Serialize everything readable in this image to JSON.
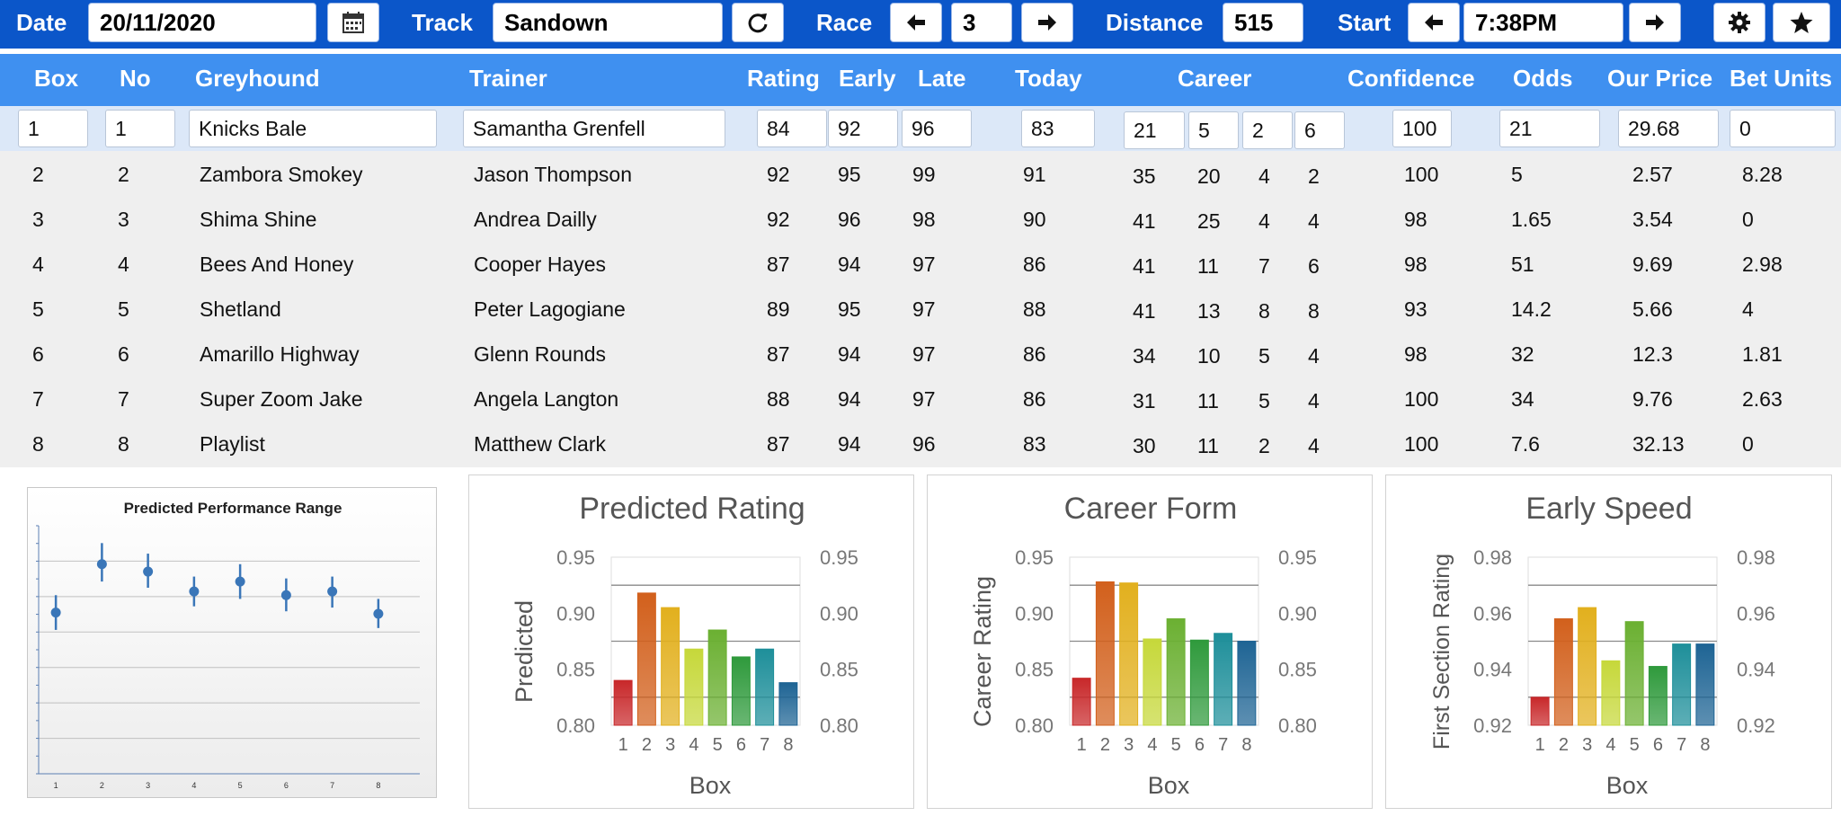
{
  "toolbar": {
    "date_label": "Date",
    "date_value": "20/11/2020",
    "track_label": "Track",
    "track_value": "Sandown",
    "race_label": "Race",
    "race_value": "3",
    "distance_label": "Distance",
    "distance_value": "515",
    "start_label": "Start",
    "start_value": "7:38PM",
    "icons": [
      "calendar-icon",
      "refresh-icon",
      "arrow-left-icon",
      "arrow-right-icon",
      "gear-icon",
      "star-icon"
    ]
  },
  "columns": [
    "Box",
    "No",
    "Greyhound",
    "Trainer",
    "Rating",
    "Early",
    "Late",
    "Today",
    "Career",
    "Confidence",
    "Odds",
    "Our Price",
    "Bet Units"
  ],
  "rows": [
    {
      "box": "1",
      "no": "1",
      "greyhound": "Knicks Bale",
      "trainer": "Samantha Grenfell",
      "rating": "84",
      "early": "92",
      "late": "96",
      "today": "83",
      "career": [
        "21",
        "5",
        "2",
        "6"
      ],
      "confidence": "100",
      "odds": "21",
      "our_price": "29.68",
      "bet_units": "0"
    },
    {
      "box": "2",
      "no": "2",
      "greyhound": "Zambora Smokey",
      "trainer": "Jason Thompson",
      "rating": "92",
      "early": "95",
      "late": "99",
      "today": "91",
      "career": [
        "35",
        "20",
        "4",
        "2"
      ],
      "confidence": "100",
      "odds": "5",
      "our_price": "2.57",
      "bet_units": "8.28"
    },
    {
      "box": "3",
      "no": "3",
      "greyhound": "Shima Shine",
      "trainer": "Andrea Dailly",
      "rating": "92",
      "early": "96",
      "late": "98",
      "today": "90",
      "career": [
        "41",
        "25",
        "4",
        "4"
      ],
      "confidence": "98",
      "odds": "1.65",
      "our_price": "3.54",
      "bet_units": "0"
    },
    {
      "box": "4",
      "no": "4",
      "greyhound": "Bees And Honey",
      "trainer": "Cooper Hayes",
      "rating": "87",
      "early": "94",
      "late": "97",
      "today": "86",
      "career": [
        "41",
        "11",
        "7",
        "6"
      ],
      "confidence": "98",
      "odds": "51",
      "our_price": "9.69",
      "bet_units": "2.98"
    },
    {
      "box": "5",
      "no": "5",
      "greyhound": "Shetland",
      "trainer": "Peter Lagogiane",
      "rating": "89",
      "early": "95",
      "late": "97",
      "today": "88",
      "career": [
        "41",
        "13",
        "8",
        "8"
      ],
      "confidence": "93",
      "odds": "14.2",
      "our_price": "5.66",
      "bet_units": "4"
    },
    {
      "box": "6",
      "no": "6",
      "greyhound": "Amarillo Highway",
      "trainer": "Glenn Rounds",
      "rating": "87",
      "early": "94",
      "late": "97",
      "today": "86",
      "career": [
        "34",
        "10",
        "5",
        "4"
      ],
      "confidence": "98",
      "odds": "32",
      "our_price": "12.3",
      "bet_units": "1.81"
    },
    {
      "box": "7",
      "no": "7",
      "greyhound": "Super Zoom Jake",
      "trainer": "Angela Langton",
      "rating": "88",
      "early": "94",
      "late": "97",
      "today": "86",
      "career": [
        "31",
        "11",
        "5",
        "4"
      ],
      "confidence": "100",
      "odds": "34",
      "our_price": "9.76",
      "bet_units": "2.63"
    },
    {
      "box": "8",
      "no": "8",
      "greyhound": "Playlist",
      "trainer": "Matthew Clark",
      "rating": "87",
      "early": "94",
      "late": "96",
      "today": "83",
      "career": [
        "30",
        "11",
        "2",
        "4"
      ],
      "confidence": "100",
      "odds": "7.6",
      "our_price": "32.13",
      "bet_units": "0"
    }
  ],
  "colors": {
    "toolbar_bg": "#0b56c9",
    "header_bg": "#3f90f0",
    "selected_row_bg": "#dce8f8",
    "table_bg": "#efefef",
    "range_marker": "#3a76b8",
    "bar_palette": [
      "#c8282a",
      "#d2601c",
      "#e2b01e",
      "#c6d83a",
      "#6bb032",
      "#2f9a3c",
      "#1e8f9a",
      "#1e6494"
    ]
  },
  "chart_data": [
    {
      "type": "scatter",
      "title": "Predicted Performance Range",
      "categories": [
        "1",
        "2",
        "3",
        "4",
        "5",
        "6",
        "7",
        "8"
      ],
      "values": [
        0.86,
        0.938,
        0.926,
        0.894,
        0.91,
        0.888,
        0.894,
        0.858
      ],
      "range_low": [
        0.832,
        0.91,
        0.9,
        0.87,
        0.882,
        0.862,
        0.868,
        0.835
      ],
      "range_high": [
        0.888,
        0.972,
        0.955,
        0.918,
        0.938,
        0.915,
        0.918,
        0.882
      ],
      "ylim": [
        0.6,
        1.0
      ],
      "grid": true
    },
    {
      "type": "bar",
      "title": "Predicted Rating",
      "xlabel": "Box",
      "ylabel": "Predicted",
      "categories": [
        "1",
        "2",
        "3",
        "4",
        "5",
        "6",
        "7",
        "8"
      ],
      "values": [
        0.84,
        0.918,
        0.905,
        0.868,
        0.885,
        0.861,
        0.868,
        0.838
      ],
      "ylim": [
        0.8,
        0.95
      ],
      "yticks": [
        "0.80",
        "0.85",
        "0.90",
        "0.95"
      ],
      "gridlines": [
        0.825,
        0.875,
        0.925
      ]
    },
    {
      "type": "bar",
      "title": "Career Form",
      "xlabel": "Box",
      "ylabel": "Career Rating",
      "categories": [
        "1",
        "2",
        "3",
        "4",
        "5",
        "6",
        "7",
        "8"
      ],
      "values": [
        0.842,
        0.928,
        0.927,
        0.877,
        0.895,
        0.876,
        0.882,
        0.875
      ],
      "ylim": [
        0.8,
        0.95
      ],
      "yticks": [
        "0.80",
        "0.85",
        "0.90",
        "0.95"
      ],
      "gridlines": [
        0.825,
        0.875,
        0.925
      ]
    },
    {
      "type": "bar",
      "title": "Early Speed",
      "xlabel": "Box",
      "ylabel": "First Section Rating",
      "categories": [
        "1",
        "2",
        "3",
        "4",
        "5",
        "6",
        "7",
        "8"
      ],
      "values": [
        0.93,
        0.958,
        0.962,
        0.943,
        0.957,
        0.941,
        0.949,
        0.949
      ],
      "ylim": [
        0.92,
        0.98
      ],
      "yticks": [
        "0.92",
        "0.94",
        "0.96",
        "0.98"
      ],
      "gridlines": [
        0.93,
        0.95,
        0.97
      ]
    }
  ]
}
